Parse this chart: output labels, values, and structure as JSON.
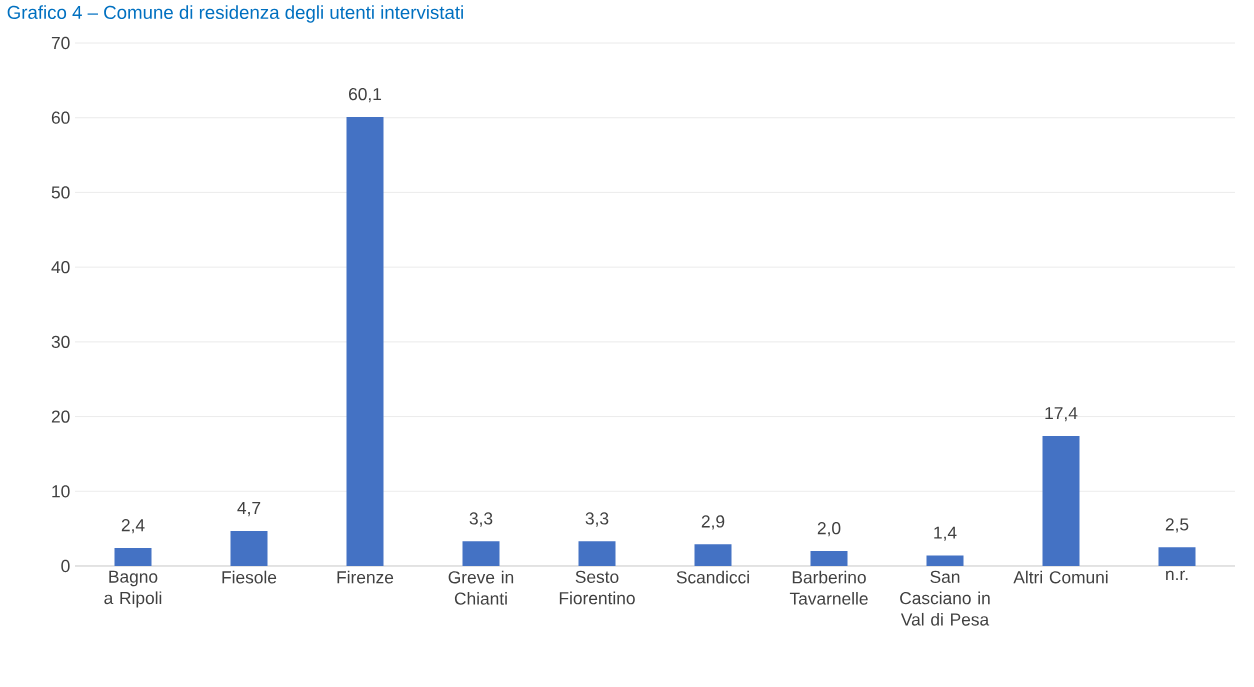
{
  "chart_data": {
    "type": "bar",
    "title": "Grafico 4 – Comune di residenza degli utenti intervistati",
    "categories": [
      "Bagno a Ripoli",
      "Fiesole",
      "Firenze",
      "Greve in Chianti",
      "Sesto Fiorentino",
      "Scandicci",
      "Barberino Tavarnelle",
      "San Casciano in Val di Pesa",
      "Altri Comuni",
      "n.r."
    ],
    "values": [
      2.4,
      4.7,
      60.1,
      3.3,
      3.3,
      2.9,
      2.0,
      1.4,
      17.4,
      2.5
    ],
    "value_labels": [
      "2,4",
      "4,7",
      "60,1",
      "3,3",
      "3,3",
      "2,9",
      "2,0",
      "1,4",
      "17,4",
      "2,5"
    ],
    "color": "#4472c4",
    "ylim": [
      0,
      70
    ],
    "yticks": [
      0,
      10,
      20,
      30,
      40,
      50,
      60,
      70
    ],
    "grid": "y"
  }
}
